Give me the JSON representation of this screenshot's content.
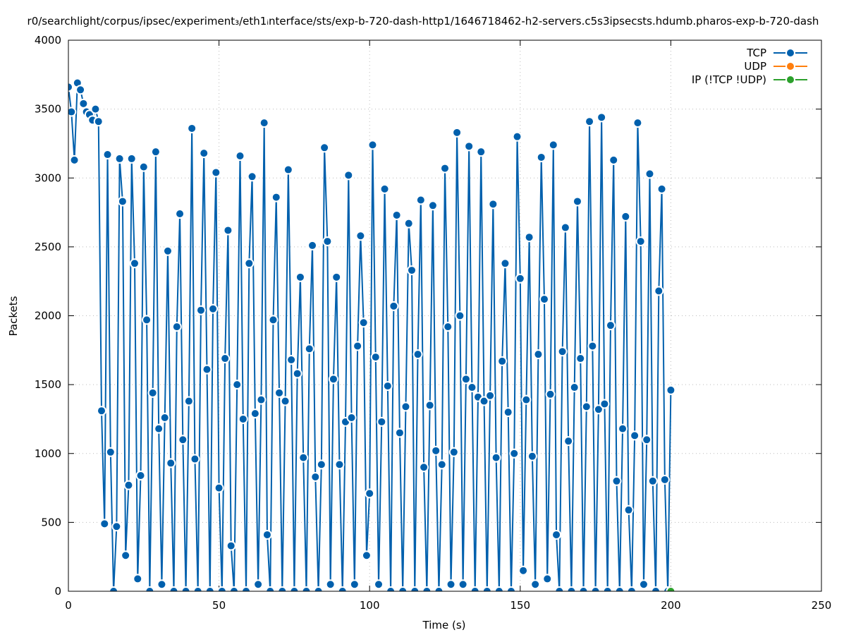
{
  "chart_data": {
    "type": "line",
    "title": "r0/searchlight/corpus/ipsec/experiment₃/eth1ᵢnterface/sts/exp-b-720-dash-http1/1646718462-h2-servers.c5s3ipsecsts.hdumb.pharos-exp-b-720-dash",
    "x_label": "Time (s)",
    "y_label": "Packets",
    "xlim": [
      0,
      250
    ],
    "xticks": [
      0,
      50,
      100,
      150,
      200,
      250
    ],
    "ylim": [
      0,
      4000
    ],
    "yticks": [
      0,
      500,
      1000,
      1500,
      2000,
      2500,
      3000,
      3500,
      4000
    ],
    "grid": true,
    "legend": "top-right",
    "x": [
      0,
      1,
      2,
      3,
      4,
      5,
      6,
      7,
      8,
      9,
      10,
      11,
      12,
      13,
      14,
      15,
      16,
      17,
      18,
      19,
      20,
      21,
      22,
      23,
      24,
      25,
      26,
      27,
      28,
      29,
      30,
      31,
      32,
      33,
      34,
      35,
      36,
      37,
      38,
      39,
      40,
      41,
      42,
      43,
      44,
      45,
      46,
      47,
      48,
      49,
      50,
      51,
      52,
      53,
      54,
      55,
      56,
      57,
      58,
      59,
      60,
      61,
      62,
      63,
      64,
      65,
      66,
      67,
      68,
      69,
      70,
      71,
      72,
      73,
      74,
      75,
      76,
      77,
      78,
      79,
      80,
      81,
      82,
      83,
      84,
      85,
      86,
      87,
      88,
      89,
      90,
      91,
      92,
      93,
      94,
      95,
      96,
      97,
      98,
      99,
      100,
      101,
      102,
      103,
      104,
      105,
      106,
      107,
      108,
      109,
      110,
      111,
      112,
      113,
      114,
      115,
      116,
      117,
      118,
      119,
      120,
      121,
      122,
      123,
      124,
      125,
      126,
      127,
      128,
      129,
      130,
      131,
      132,
      133,
      134,
      135,
      136,
      137,
      138,
      139,
      140,
      141,
      142,
      143,
      144,
      145,
      146,
      147,
      148,
      149,
      150,
      151,
      152,
      153,
      154,
      155,
      156,
      157,
      158,
      159,
      160,
      161,
      162,
      163,
      164,
      165,
      166,
      167,
      168,
      169,
      170,
      171,
      172,
      173,
      174,
      175,
      176,
      177,
      178,
      179,
      180,
      181,
      182,
      183,
      184,
      185,
      186,
      187,
      188,
      189,
      190,
      191,
      192,
      193,
      194,
      195,
      196,
      197,
      198,
      199,
      200
    ],
    "series": [
      {
        "name": "TCP",
        "color": "#0060ad",
        "values": [
          3660,
          3480,
          3130,
          3690,
          3640,
          3540,
          3480,
          3460,
          3420,
          3500,
          3410,
          1310,
          490,
          3170,
          1010,
          0,
          470,
          3140,
          2830,
          260,
          770,
          3140,
          2380,
          90,
          840,
          3080,
          1970,
          0,
          1440,
          3190,
          1180,
          50,
          1260,
          2470,
          930,
          0,
          1920,
          2740,
          1100,
          0,
          1380,
          3360,
          960,
          0,
          2040,
          3180,
          1610,
          0,
          2050,
          3040,
          750,
          0,
          1690,
          2620,
          330,
          0,
          1500,
          3160,
          1250,
          0,
          2380,
          3010,
          1290,
          50,
          1390,
          3400,
          410,
          0,
          1970,
          2860,
          1440,
          0,
          1380,
          3060,
          1680,
          0,
          1580,
          2280,
          970,
          0,
          1760,
          2510,
          830,
          0,
          920,
          3220,
          2540,
          50,
          1540,
          2280,
          920,
          0,
          1230,
          3020,
          1260,
          50,
          1780,
          2580,
          1950,
          260,
          710,
          3240,
          1700,
          50,
          1230,
          2920,
          1490,
          0,
          2070,
          2730,
          1150,
          0,
          1340,
          2670,
          2330,
          0,
          1720,
          2840,
          900,
          0,
          1350,
          2800,
          1020,
          0,
          920,
          3070,
          1920,
          50,
          1010,
          3330,
          2000,
          50,
          1540,
          3230,
          1480,
          0,
          1410,
          3190,
          1380,
          0,
          1420,
          2810,
          970,
          0,
          1670,
          2380,
          1300,
          0,
          1000,
          3300,
          2270,
          150,
          1390,
          2570,
          980,
          50,
          1720,
          3150,
          2120,
          90,
          1430,
          3240,
          410,
          0,
          1740,
          2640,
          1090,
          0,
          1480,
          2830,
          1690,
          0,
          1340,
          3410,
          1780,
          0,
          1320,
          3440,
          1360,
          0,
          1930,
          3130,
          800,
          0,
          1180,
          2720,
          590,
          0,
          1130,
          3400,
          2540,
          50,
          1100,
          3030,
          800,
          0,
          2180,
          2920,
          810,
          0,
          1460
        ]
      },
      {
        "name": "UDP",
        "color": "#ff7f0e",
        "x": [],
        "values": []
      },
      {
        "name": "IP (!TCP  !UDP)",
        "color": "#2ca02c",
        "x": [
          200
        ],
        "values": [
          0
        ]
      }
    ]
  }
}
